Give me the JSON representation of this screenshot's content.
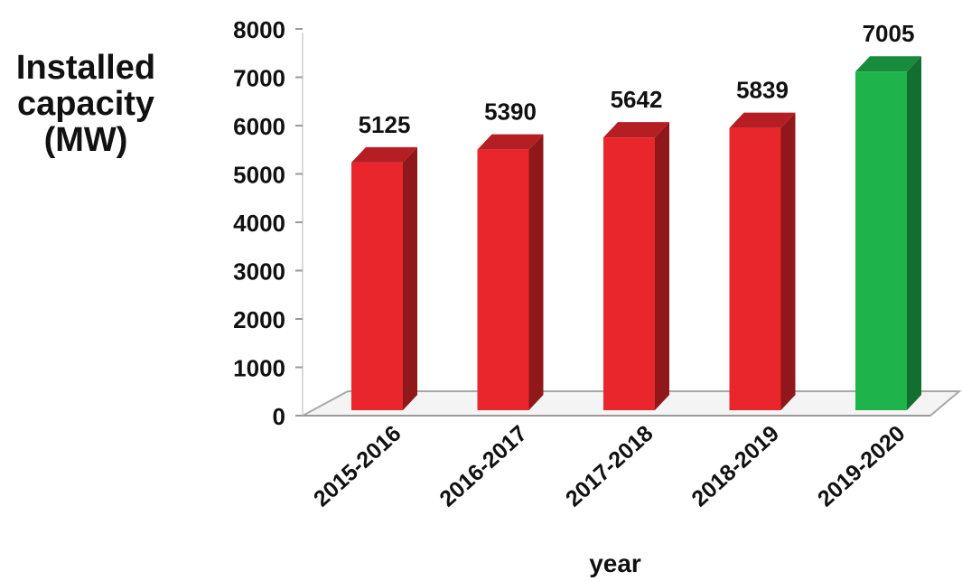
{
  "chart_data": {
    "type": "bar",
    "categories": [
      "2015-2016",
      "2016-2017",
      "2017-2018",
      "2018-2019",
      "2019-2020"
    ],
    "values": [
      5125,
      5390,
      5642,
      5839,
      7005
    ],
    "data_labels": [
      "5125",
      "5390",
      "5642",
      "5839",
      "7005"
    ],
    "bar_colors": [
      "#e8262b",
      "#e8262b",
      "#e8262b",
      "#e8262b",
      "#1fb34b"
    ],
    "ylabel_lines": [
      "Installed",
      "capacity",
      "(MW)"
    ],
    "xlabel": "year",
    "ylim": [
      0,
      8000
    ],
    "yticks": [
      "0",
      "1000",
      "2000",
      "3000",
      "4000",
      "5000",
      "6000",
      "7000",
      "8000"
    ],
    "grid": false,
    "legend": "none",
    "style": "3d-bar"
  }
}
